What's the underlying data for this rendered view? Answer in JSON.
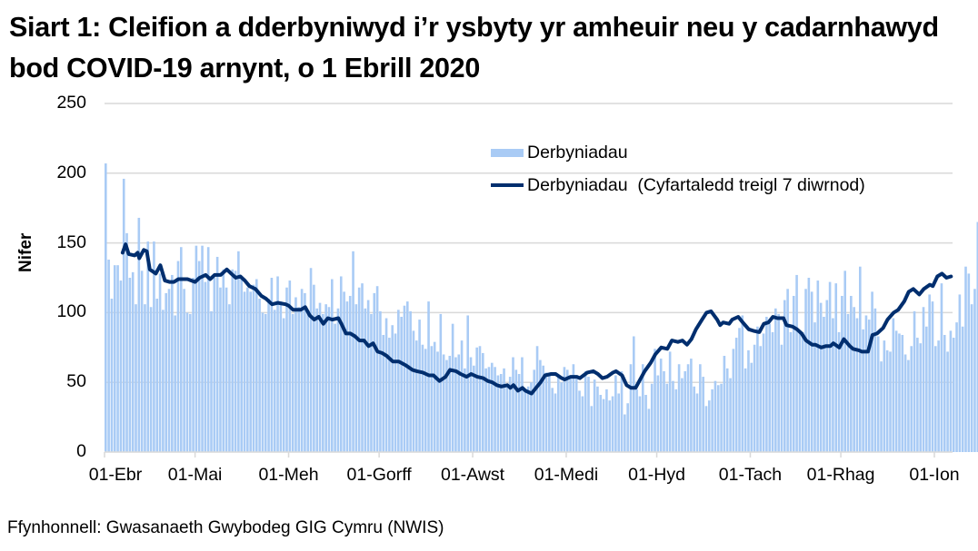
{
  "title": "Siart 1: Cleifion a dderbyniwyd i’r ysbyty yr amheuir neu y cadarnhawyd bod COVID-19 arnynt, o 1 Ebrill 2020",
  "source": "Ffynhonnell: Gwasanaeth Gwybodeg GIG Cymru (NWIS)",
  "colors": {
    "bars": "#A9CBF5",
    "line": "#002E6E",
    "grid": "#D9D9D9"
  },
  "chart_data": {
    "type": "bar",
    "title": "Siart 1: Cleifion a dderbyniwyd i’r ysbyty yr amheuir neu y cadarnhawyd bod COVID-19 arnynt, o 1 Ebrill 2020",
    "xlabel": "",
    "ylabel": "Nifer",
    "ylim": [
      0,
      250
    ],
    "yticks": [
      0,
      50,
      100,
      150,
      200,
      250
    ],
    "grid": true,
    "legend_position": "upper right inside",
    "x_tick_labels": [
      "01-Ebr",
      "01-Mai",
      "01-Meh",
      "01-Gorff",
      "01-Awst",
      "01-Medi",
      "01-Hyd",
      "01-Tach",
      "01-Rhag",
      "01-Ion"
    ],
    "x_tick_days": [
      0,
      30,
      61,
      91,
      122,
      153,
      183,
      214,
      244,
      275
    ],
    "x_start": "01-Ebr",
    "series": [
      {
        "name": "Derbyniadau",
        "type": "bar",
        "values": [
          207,
          138,
          110,
          134,
          134,
          123,
          196,
          157,
          125,
          129,
          106,
          168,
          130,
          106,
          151,
          104,
          151,
          110,
          128,
          102,
          114,
          117,
          127,
          98,
          137,
          147,
          117,
          100,
          99,
          125,
          148,
          137,
          148,
          122,
          147,
          101,
          125,
          140,
          118,
          131,
          118,
          106,
          131,
          130,
          144,
          126,
          115,
          118,
          115,
          120,
          124,
          110,
          100,
          99,
          110,
          125,
          102,
          126,
          108,
          96,
          118,
          123,
          99,
          111,
          104,
          117,
          114,
          100,
          132,
          120,
          103,
          107,
          99,
          106,
          104,
          124,
          92,
          103,
          126,
          115,
          108,
          112,
          144,
          106,
          118,
          121,
          103,
          109,
          99,
          114,
          119,
          101,
          84,
          96,
          82,
          91,
          85,
          102,
          97,
          105,
          108,
          101,
          87,
          80,
          95,
          77,
          74,
          108,
          76,
          79,
          72,
          99,
          70,
          66,
          69,
          92,
          68,
          70,
          80,
          60,
          98,
          68,
          62,
          75,
          76,
          71,
          60,
          61,
          64,
          61,
          55,
          56,
          60,
          47,
          54,
          68,
          59,
          56,
          68,
          44,
          47,
          50,
          59,
          76,
          66,
          62,
          57,
          56,
          46,
          42,
          55,
          50,
          61,
          59,
          53,
          63,
          55,
          44,
          40,
          58,
          54,
          33,
          52,
          47,
          41,
          38,
          45,
          37,
          40,
          55,
          42,
          58,
          27,
          35,
          63,
          83,
          45,
          40,
          63,
          41,
          31,
          49,
          74,
          55,
          67,
          58,
          49,
          72,
          51,
          45,
          63,
          53,
          58,
          63,
          67,
          47,
          42,
          63,
          54,
          33,
          37,
          45,
          51,
          48,
          49,
          69,
          60,
          53,
          74,
          82,
          89,
          98,
          60,
          73,
          64,
          77,
          90,
          76,
          85,
          97,
          92,
          86,
          103,
          99,
          77,
          109,
          117,
          86,
          112,
          127,
          87,
          86,
          117,
          125,
          115,
          93,
          123,
          107,
          97,
          109,
          122,
          96,
          121,
          86,
          112,
          130,
          99,
          112,
          104,
          96,
          133,
          88,
          98,
          95,
          115,
          103,
          83,
          65,
          80,
          73,
          72,
          96,
          87,
          85,
          84,
          70,
          66,
          76,
          101,
          82,
          78,
          104,
          90,
          113,
          108,
          76,
          80,
          121,
          84,
          72,
          87,
          82,
          93,
          113,
          90,
          133,
          128,
          106,
          117,
          165,
          115,
          156,
          144,
          162,
          86,
          130,
          87,
          87,
          149
        ],
        "note": "Estimated daily admissions read from bar heights (01-Ebr to ~06-Ion)"
      },
      {
        "name": "Derbyniadau  (Cyfartaledd treigl 7 diwrnod)",
        "type": "line",
        "points": [
          [
            6,
            143
          ],
          [
            7,
            149
          ],
          [
            8,
            142
          ],
          [
            10,
            141
          ],
          [
            11,
            143
          ],
          [
            11.5,
            139
          ],
          [
            13,
            145
          ],
          [
            14,
            144
          ],
          [
            15,
            131
          ],
          [
            17,
            128
          ],
          [
            18.5,
            134
          ],
          [
            20,
            123
          ],
          [
            21.5,
            122
          ],
          [
            23,
            122
          ],
          [
            24.5,
            124
          ],
          [
            27.5,
            124
          ],
          [
            30,
            122
          ],
          [
            31.5,
            125
          ],
          [
            33.5,
            127
          ],
          [
            35,
            124
          ],
          [
            36.5,
            127
          ],
          [
            38.5,
            127
          ],
          [
            40.5,
            131
          ],
          [
            42,
            128
          ],
          [
            43.5,
            125
          ],
          [
            45,
            126
          ],
          [
            46.5,
            123
          ],
          [
            48,
            119
          ],
          [
            50,
            117
          ],
          [
            52,
            112
          ],
          [
            53.5,
            110
          ],
          [
            55.5,
            106
          ],
          [
            57.5,
            107
          ],
          [
            60,
            106
          ],
          [
            61,
            105
          ],
          [
            62.5,
            102
          ],
          [
            65,
            102
          ],
          [
            66.5,
            104
          ],
          [
            68,
            98
          ],
          [
            69.5,
            95
          ],
          [
            71,
            97
          ],
          [
            72.5,
            92
          ],
          [
            74,
            96
          ],
          [
            75.5,
            95
          ],
          [
            77.5,
            96
          ],
          [
            78.5,
            92
          ],
          [
            80,
            85
          ],
          [
            81.5,
            85
          ],
          [
            83,
            83
          ],
          [
            84.5,
            80
          ],
          [
            86,
            80
          ],
          [
            87.5,
            76
          ],
          [
            89,
            78
          ],
          [
            90.5,
            72
          ],
          [
            92,
            71
          ],
          [
            93.5,
            69
          ],
          [
            95.5,
            65
          ],
          [
            97.5,
            65
          ],
          [
            100,
            62
          ],
          [
            102,
            59
          ],
          [
            103.5,
            58
          ],
          [
            105.5,
            57
          ],
          [
            107.5,
            55
          ],
          [
            109,
            55
          ],
          [
            111,
            51
          ],
          [
            113,
            54
          ],
          [
            114.5,
            59
          ],
          [
            116.5,
            58
          ],
          [
            118,
            56
          ],
          [
            120,
            54
          ],
          [
            121.5,
            56
          ],
          [
            123.5,
            54
          ],
          [
            125.5,
            53
          ],
          [
            127,
            51
          ],
          [
            128.5,
            50
          ],
          [
            130,
            48
          ],
          [
            131.5,
            47
          ],
          [
            133.5,
            48
          ],
          [
            134.5,
            46
          ],
          [
            135.5,
            48
          ],
          [
            137,
            44
          ],
          [
            138.5,
            46
          ],
          [
            139.5,
            44
          ],
          [
            141.5,
            42
          ],
          [
            143,
            46
          ],
          [
            144.5,
            50
          ],
          [
            146,
            55
          ],
          [
            148,
            56
          ],
          [
            149.5,
            56
          ],
          [
            151.5,
            53
          ],
          [
            152.5,
            52
          ],
          [
            154.5,
            54
          ],
          [
            156.5,
            54
          ],
          [
            157.5,
            53
          ],
          [
            160,
            57
          ],
          [
            162,
            58
          ],
          [
            163.5,
            56
          ],
          [
            165,
            53
          ],
          [
            166.5,
            54
          ],
          [
            168.5,
            57
          ],
          [
            169.5,
            58
          ],
          [
            171.5,
            55
          ],
          [
            173,
            48
          ],
          [
            174.5,
            46
          ],
          [
            176,
            46
          ],
          [
            177.5,
            52
          ],
          [
            179,
            58
          ],
          [
            181,
            64
          ],
          [
            182.5,
            70
          ],
          [
            184.5,
            75
          ],
          [
            186.5,
            74
          ],
          [
            188,
            80
          ],
          [
            190,
            79
          ],
          [
            191.5,
            80
          ],
          [
            193,
            77
          ],
          [
            194.5,
            81
          ],
          [
            196,
            88
          ],
          [
            198,
            95
          ],
          [
            199.5,
            100
          ],
          [
            201,
            101
          ],
          [
            203,
            95
          ],
          [
            204,
            91
          ],
          [
            205,
            93
          ],
          [
            207,
            92
          ],
          [
            208,
            95
          ],
          [
            210,
            97
          ],
          [
            211.5,
            93
          ],
          [
            213.5,
            88
          ],
          [
            215,
            87
          ],
          [
            217,
            86
          ],
          [
            218.5,
            92
          ],
          [
            220,
            93
          ],
          [
            221.5,
            97
          ],
          [
            223,
            96
          ],
          [
            225,
            96
          ],
          [
            226,
            91
          ],
          [
            228,
            90
          ],
          [
            229.5,
            88
          ],
          [
            231,
            85
          ],
          [
            232.5,
            80
          ],
          [
            234.5,
            77
          ],
          [
            235.5,
            77
          ],
          [
            237.5,
            75
          ],
          [
            239,
            76
          ],
          [
            240.5,
            76
          ],
          [
            241.5,
            78
          ],
          [
            243.5,
            75
          ],
          [
            245,
            81
          ],
          [
            247,
            76
          ],
          [
            248,
            74
          ],
          [
            250,
            73
          ],
          [
            251,
            72
          ],
          [
            253,
            72
          ],
          [
            254.5,
            84
          ],
          [
            256,
            85
          ],
          [
            258,
            89
          ],
          [
            259.5,
            95
          ],
          [
            261.5,
            100
          ],
          [
            263,
            102
          ],
          [
            265,
            108
          ],
          [
            266.5,
            115
          ],
          [
            268,
            117
          ],
          [
            270,
            113
          ],
          [
            271.5,
            117
          ],
          [
            273.5,
            120
          ],
          [
            274.5,
            119
          ],
          [
            276,
            126
          ],
          [
            277.5,
            128
          ],
          [
            279,
            125
          ],
          [
            280.5,
            126
          ]
        ]
      }
    ]
  },
  "legend": {
    "items": [
      {
        "label": "Derbyniadau",
        "swatch": "bar"
      },
      {
        "label": "Derbyniadau  (Cyfartaledd treigl 7 diwrnod)",
        "swatch": "line"
      }
    ]
  }
}
